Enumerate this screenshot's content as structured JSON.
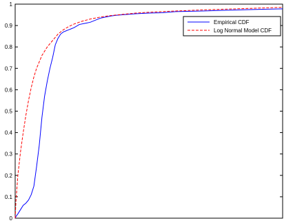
{
  "chart_data": {
    "type": "line",
    "title": "",
    "xlabel": "",
    "ylabel": "",
    "ylim": [
      0,
      1
    ],
    "xlim": [
      0,
      1
    ],
    "y_ticks": [
      "0",
      "0.1",
      "0.2",
      "0.3",
      "0.4",
      "0.5",
      "0.6",
      "0.7",
      "0.8",
      "0.9",
      "1"
    ],
    "x_ticks": [],
    "grid": false,
    "legend_position": "top-right",
    "series": [
      {
        "name": "Empirical CDF",
        "color": "#0000ff",
        "style": "solid",
        "x": [
          0,
          0.004,
          0.01,
          0.02,
          0.03,
          0.04,
          0.05,
          0.06,
          0.07,
          0.08,
          0.09,
          0.1,
          0.11,
          0.12,
          0.13,
          0.14,
          0.15,
          0.16,
          0.17,
          0.18,
          0.19,
          0.2,
          0.21,
          0.22,
          0.24,
          0.26,
          0.28,
          0.3,
          0.32,
          0.34,
          0.36,
          0.38,
          0.4,
          0.45,
          0.5,
          0.55,
          0.6,
          0.7,
          0.8,
          0.9,
          1.0
        ],
        "y": [
          0,
          0.01,
          0.02,
          0.04,
          0.06,
          0.07,
          0.085,
          0.11,
          0.15,
          0.24,
          0.34,
          0.47,
          0.57,
          0.64,
          0.7,
          0.75,
          0.81,
          0.84,
          0.86,
          0.87,
          0.875,
          0.88,
          0.885,
          0.89,
          0.905,
          0.91,
          0.915,
          0.925,
          0.935,
          0.94,
          0.945,
          0.948,
          0.95,
          0.955,
          0.958,
          0.96,
          0.965,
          0.968,
          0.972,
          0.975,
          0.978
        ]
      },
      {
        "name": "Log Normal Model CDF",
        "color": "#ff0000",
        "style": "dashed",
        "x": [
          0,
          0.003,
          0.01,
          0.02,
          0.03,
          0.04,
          0.05,
          0.06,
          0.07,
          0.08,
          0.09,
          0.1,
          0.12,
          0.14,
          0.16,
          0.18,
          0.2,
          0.22,
          0.25,
          0.28,
          0.32,
          0.36,
          0.4,
          0.45,
          0.5,
          0.6,
          0.7,
          0.8,
          0.9,
          1.0
        ],
        "y": [
          0,
          0.08,
          0.2,
          0.31,
          0.4,
          0.48,
          0.55,
          0.61,
          0.66,
          0.7,
          0.73,
          0.76,
          0.8,
          0.83,
          0.86,
          0.88,
          0.895,
          0.907,
          0.92,
          0.93,
          0.94,
          0.947,
          0.952,
          0.958,
          0.962,
          0.968,
          0.973,
          0.977,
          0.981,
          0.985
        ]
      }
    ]
  }
}
